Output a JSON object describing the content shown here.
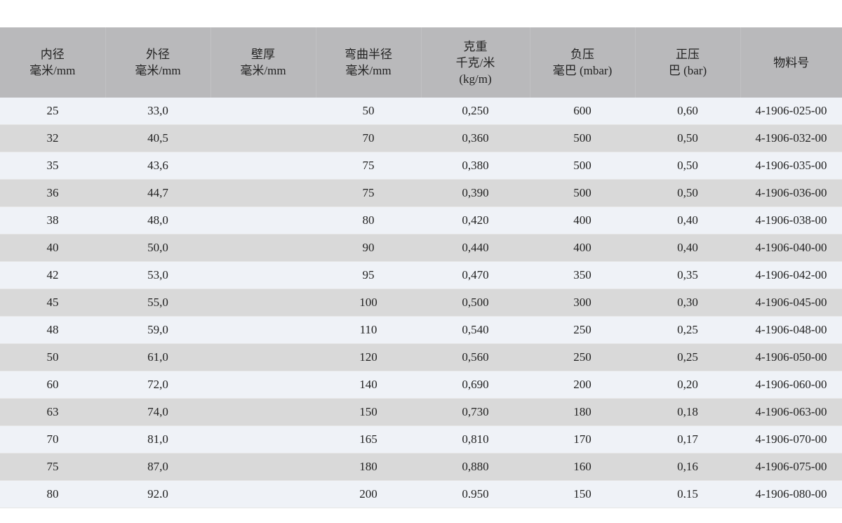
{
  "header": [
    {
      "lines": [
        "内径",
        "毫米/mm"
      ]
    },
    {
      "lines": [
        "外径",
        "毫米/mm"
      ]
    },
    {
      "lines": [
        "壁厚",
        "毫米/mm"
      ]
    },
    {
      "lines": [
        "弯曲半径",
        "毫米/mm"
      ]
    },
    {
      "lines": [
        "克重",
        "千克/米",
        "(kg/m)"
      ]
    },
    {
      "lines": [
        "负压",
        "毫巴 (mbar)"
      ]
    },
    {
      "lines": [
        "正压",
        "巴 (bar)"
      ]
    },
    {
      "lines": [
        "物料号"
      ]
    }
  ],
  "rows": [
    [
      "25",
      "33,0",
      "",
      "50",
      "0,250",
      "600",
      "0,60",
      "4-1906-025-00"
    ],
    [
      "32",
      "40,5",
      "",
      "70",
      "0,360",
      "500",
      "0,50",
      "4-1906-032-00"
    ],
    [
      "35",
      "43,6",
      "",
      "75",
      "0,380",
      "500",
      "0,50",
      "4-1906-035-00"
    ],
    [
      "36",
      "44,7",
      "",
      "75",
      "0,390",
      "500",
      "0,50",
      "4-1906-036-00"
    ],
    [
      "38",
      "48,0",
      "",
      "80",
      "0,420",
      "400",
      "0,40",
      "4-1906-038-00"
    ],
    [
      "40",
      "50,0",
      "",
      "90",
      "0,440",
      "400",
      "0,40",
      "4-1906-040-00"
    ],
    [
      "42",
      "53,0",
      "",
      "95",
      "0,470",
      "350",
      "0,35",
      "4-1906-042-00"
    ],
    [
      "45",
      "55,0",
      "",
      "100",
      "0,500",
      "300",
      "0,30",
      "4-1906-045-00"
    ],
    [
      "48",
      "59,0",
      "",
      "110",
      "0,540",
      "250",
      "0,25",
      "4-1906-048-00"
    ],
    [
      "50",
      "61,0",
      "",
      "120",
      "0,560",
      "250",
      "0,25",
      "4-1906-050-00"
    ],
    [
      "60",
      "72,0",
      "",
      "140",
      "0,690",
      "200",
      "0,20",
      "4-1906-060-00"
    ],
    [
      "63",
      "74,0",
      "",
      "150",
      "0,730",
      "180",
      "0,18",
      "4-1906-063-00"
    ],
    [
      "70",
      "81,0",
      "",
      "165",
      "0,810",
      "170",
      "0,17",
      "4-1906-070-00"
    ],
    [
      "75",
      "87,0",
      "",
      "180",
      "0,880",
      "160",
      "0,16",
      "4-1906-075-00"
    ],
    [
      "80",
      "92,0",
      "",
      "200",
      "0,950",
      "150",
      "0,15",
      "4-1906-080-00"
    ]
  ],
  "colors": {
    "header_bg": "#b9b9bb",
    "row_light": "#eff2f7",
    "row_dark": "#d9d9d9"
  }
}
